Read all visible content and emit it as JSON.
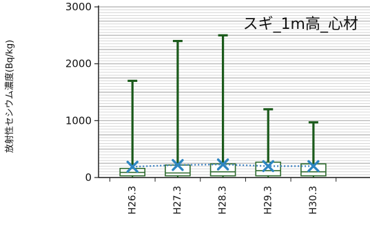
{
  "chart_data": {
    "type": "box",
    "title": "スギ_1m高_心材",
    "ylabel": "放射性セシウム濃度(Bq/kg)",
    "xlabel": "",
    "ylim": [
      0,
      3000
    ],
    "yticks": [
      0,
      1000,
      2000,
      3000
    ],
    "grid": true,
    "legend": "none",
    "categories": [
      "H26.3",
      "H27.3",
      "H28.3",
      "H29.3",
      "H30.3"
    ],
    "whisker_max": [
      1700,
      2400,
      2500,
      1200,
      970
    ],
    "box_q3": [
      160,
      220,
      240,
      270,
      240
    ],
    "median": [
      90,
      80,
      100,
      120,
      100
    ],
    "box_q1": [
      30,
      30,
      30,
      30,
      30
    ],
    "whisker_min": [
      0,
      0,
      0,
      0,
      0
    ],
    "mean": [
      190,
      220,
      230,
      200,
      200
    ]
  },
  "colors": {
    "whisker": "#1b5a1b",
    "box_edge": "#2d6a2d",
    "mean_marker": "#2e86c1",
    "mean_line": "#3a7fbf",
    "grid": "#b4b4b4",
    "axis": "#222222"
  }
}
